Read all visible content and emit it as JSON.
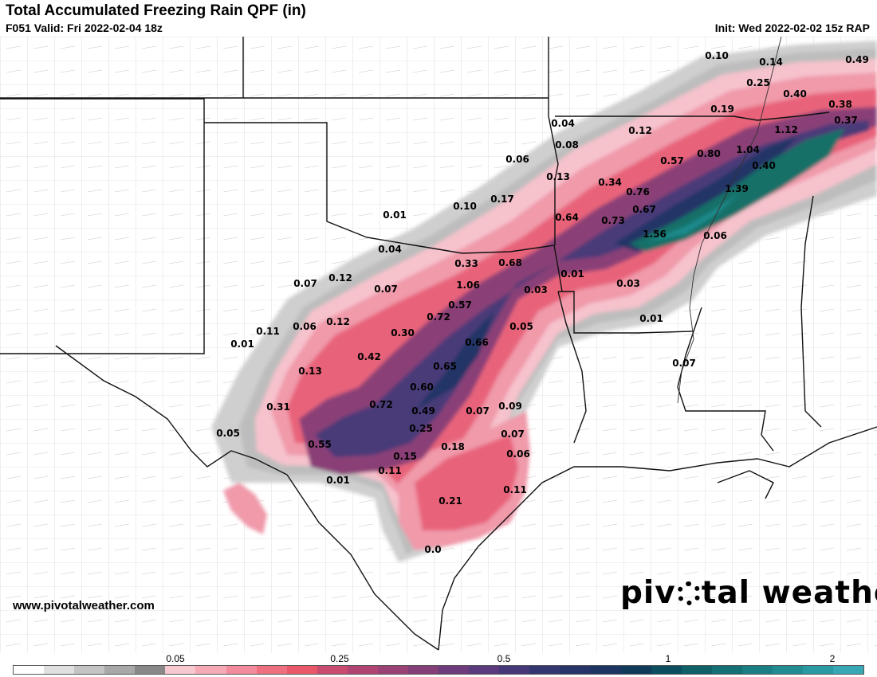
{
  "header": {
    "title": "Total Accumulated Freezing Rain QPF (in)",
    "valid": "F051 Valid: Fri 2022-02-04 18z",
    "init": "Init: Wed 2022-02-02 15z RAP"
  },
  "footer": {
    "website": "www.pivotalweather.com",
    "logo_text_a": "piv",
    "logo_text_b": "tal weather",
    "logo_icon": "gear-icon"
  },
  "legend": {
    "tick_labels": [
      "0.05",
      "0.25",
      "0.5",
      "1",
      "2"
    ],
    "colors": [
      "#ffffff",
      "#e0e0e0",
      "#c4c4c4",
      "#a8a8a8",
      "#888888",
      "#f8c8d0",
      "#f6aab6",
      "#f28c9c",
      "#ee7080",
      "#e85868",
      "#c94c70",
      "#b04472",
      "#9a4276",
      "#843e78",
      "#6e3c7c",
      "#5a3a7c",
      "#463878",
      "#343670",
      "#263468",
      "#1c3562",
      "#103a5a",
      "#0c4e60",
      "#106068",
      "#157076",
      "#1a7e84",
      "#218c92",
      "#2a9aa2",
      "#38a8b4"
    ]
  },
  "map": {
    "values": [
      {
        "text": "0.10"
      },
      {
        "text": "0.14"
      },
      {
        "text": "0.49"
      },
      {
        "text": "0.25"
      },
      {
        "text": "0.40"
      },
      {
        "text": "0.38"
      },
      {
        "text": "0.19"
      },
      {
        "text": "0.37"
      },
      {
        "text": "1.12"
      },
      {
        "text": "0.04"
      },
      {
        "text": "0.12"
      },
      {
        "text": "0.08"
      },
      {
        "text": "0.80"
      },
      {
        "text": "1.04"
      },
      {
        "text": "0.57"
      },
      {
        "text": "0.06"
      },
      {
        "text": "0.40"
      },
      {
        "text": "0.13"
      },
      {
        "text": "0.34"
      },
      {
        "text": "0.76"
      },
      {
        "text": "1.39"
      },
      {
        "text": "0.10"
      },
      {
        "text": "0.17"
      },
      {
        "text": "0.67"
      },
      {
        "text": "0.01"
      },
      {
        "text": "0.64"
      },
      {
        "text": "0.73"
      },
      {
        "text": "1.56"
      },
      {
        "text": "0.06"
      },
      {
        "text": "0.04"
      },
      {
        "text": "0.33"
      },
      {
        "text": "0.68"
      },
      {
        "text": "0.01"
      },
      {
        "text": "0.07"
      },
      {
        "text": "0.12"
      },
      {
        "text": "1.06"
      },
      {
        "text": "0.03"
      },
      {
        "text": "0.07"
      },
      {
        "text": "0.03"
      },
      {
        "text": "0.57"
      },
      {
        "text": "0.72"
      },
      {
        "text": "0.01"
      },
      {
        "text": "0.11"
      },
      {
        "text": "0.06"
      },
      {
        "text": "0.12"
      },
      {
        "text": "0.30"
      },
      {
        "text": "0.05"
      },
      {
        "text": "0.01"
      },
      {
        "text": "0.66"
      },
      {
        "text": "0.42"
      },
      {
        "text": "0.07"
      },
      {
        "text": "0.13"
      },
      {
        "text": "0.65"
      },
      {
        "text": "0.60"
      },
      {
        "text": "0.31"
      },
      {
        "text": "0.72"
      },
      {
        "text": "0.49"
      },
      {
        "text": "0.07"
      },
      {
        "text": "0.09"
      },
      {
        "text": "0.05"
      },
      {
        "text": "0.25"
      },
      {
        "text": "0.07"
      },
      {
        "text": "0.55"
      },
      {
        "text": "0.18"
      },
      {
        "text": "0.15"
      },
      {
        "text": "0.06"
      },
      {
        "text": "0.11"
      },
      {
        "text": "0.01"
      },
      {
        "text": "0.11"
      },
      {
        "text": "0.21"
      },
      {
        "text": "0.0"
      }
    ]
  }
}
